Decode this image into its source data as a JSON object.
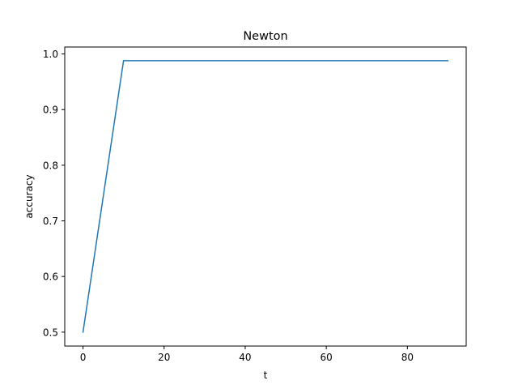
{
  "chart_data": {
    "type": "line",
    "title": "Newton",
    "xlabel": "t",
    "ylabel": "accuracy",
    "xlim": [
      -4.5,
      94.5
    ],
    "ylim": [
      0.475,
      1.0125
    ],
    "xticks": [
      0,
      20,
      40,
      60,
      80
    ],
    "xtick_labels": [
      "0",
      "20",
      "40",
      "60",
      "80"
    ],
    "yticks": [
      0.5,
      0.6,
      0.7,
      0.8,
      0.9,
      1.0
    ],
    "ytick_labels": [
      "0.5",
      "0.6",
      "0.7",
      "0.8",
      "0.9",
      "1.0"
    ],
    "grid": false,
    "series": [
      {
        "color": "#1f77b4",
        "x": [
          0,
          10,
          20,
          30,
          40,
          50,
          60,
          70,
          80,
          90
        ],
        "y": [
          0.5,
          0.988,
          0.988,
          0.988,
          0.988,
          0.988,
          0.988,
          0.988,
          0.988,
          0.988
        ]
      }
    ]
  }
}
